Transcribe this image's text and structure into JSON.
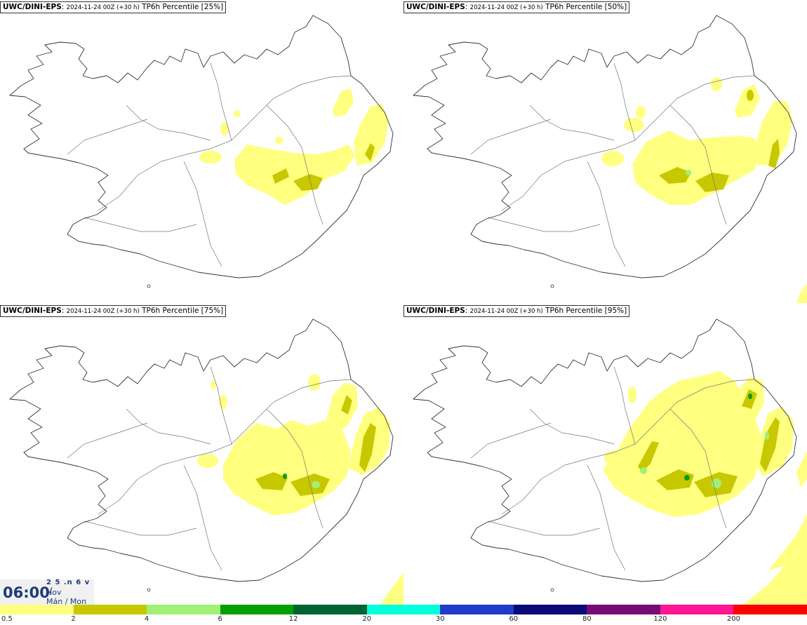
{
  "panels": [
    {
      "model": "UWC/DINI-EPS",
      "run": "2024-11-24 00Z (+30 h)",
      "field": "TP6h Percentile [25%]"
    },
    {
      "model": "UWC/DINI-EPS",
      "run": "2024-11-24 00Z (+30 h)",
      "field": "TP6h Percentile [50%]"
    },
    {
      "model": "UWC/DINI-EPS",
      "run": "2024-11-24 00Z (+30 h)",
      "field": "TP6h Percentile [75%]"
    },
    {
      "model": "UWC/DINI-EPS",
      "run": "2024-11-24 00Z (+30 h)",
      "field": "TP6h Percentile [95%]"
    }
  ],
  "valid_time": {
    "time": "06:00",
    "date_mark": "2 5 .n 6 v ./",
    "month": "Nov",
    "weekday": "Mán / Mon"
  },
  "legend": {
    "colors": [
      "#ffff80",
      "#c8c800",
      "#a0f078",
      "#00a000",
      "#006432",
      "#00ffdc",
      "#1e3cc8",
      "#0a0a78",
      "#780a78",
      "#ff1493",
      "#ff0000"
    ],
    "ticks": [
      "0.5",
      "2",
      "4",
      "6",
      "12",
      "20",
      "30",
      "60",
      "80",
      "120",
      "200"
    ]
  }
}
